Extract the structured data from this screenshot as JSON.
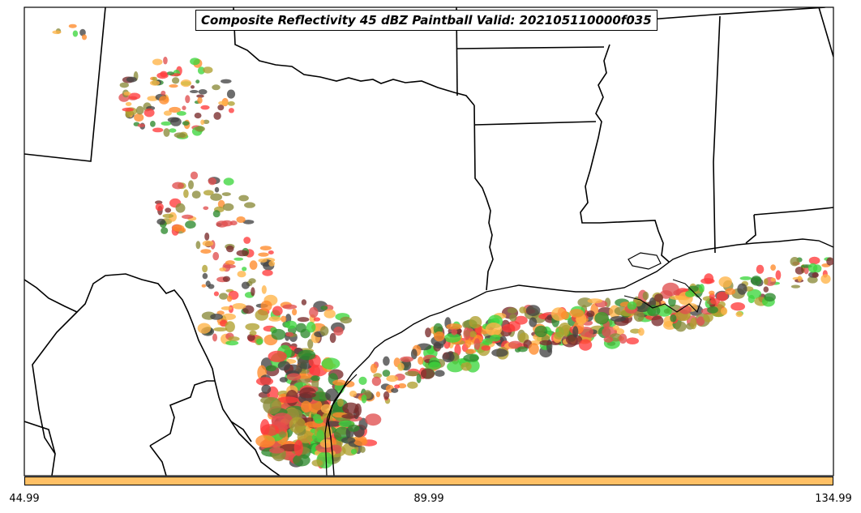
{
  "title": "Composite Reflectivity 45 dBZ Paintball Valid: 202105110000f035",
  "colorbar": {
    "color": "#ffc065",
    "ticks": [
      "44.99",
      "89.99",
      "134.99"
    ]
  },
  "colors": {
    "background": "#ffffff",
    "boundaries": "#000000",
    "paint": [
      "#ff3b3b",
      "#ff8a2a",
      "#ffb347",
      "#3dd63d",
      "#2e8b2e",
      "#8b8b3a",
      "#444444",
      "#b0a030",
      "#7a2b2b",
      "#e05050"
    ]
  }
}
